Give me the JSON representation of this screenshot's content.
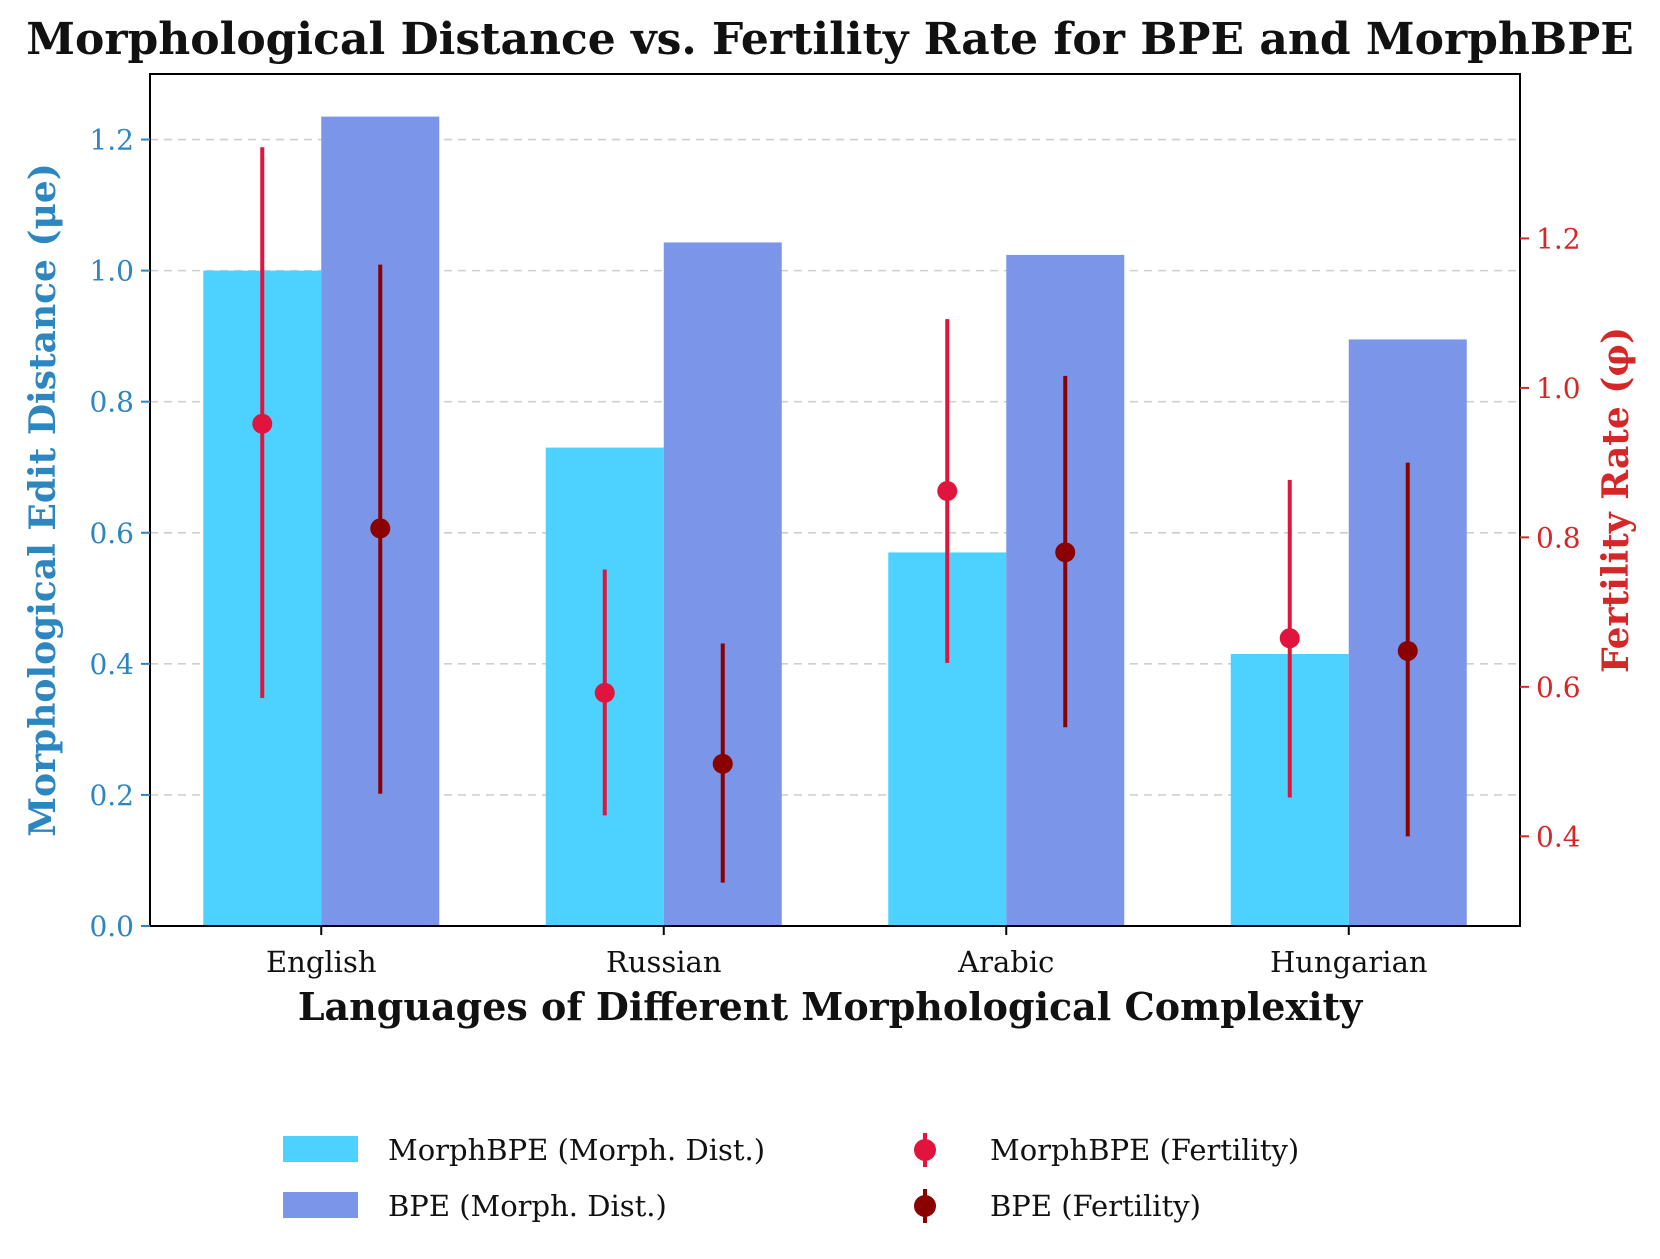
{
  "chart_data": {
    "type": "bar",
    "title": "Morphological Distance vs. Fertility Rate for BPE and MorphBPE",
    "xlabel": "Languages of Different Morphological Complexity",
    "ylabel_left": "Morphological Edit Distance (μe)",
    "ylabel_right": "Fertility Rate (φ)",
    "categories": [
      "English",
      "Russian",
      "Arabic",
      "Hungarian"
    ],
    "ylim_left": [
      0,
      1.3
    ],
    "ylim_right": [
      0.28,
      1.42
    ],
    "yticks_left": [
      "0.0",
      "0.2",
      "0.4",
      "0.6",
      "0.8",
      "1.0",
      "1.2"
    ],
    "yticks_right": [
      "0.4",
      "0.6",
      "0.8",
      "1.0",
      "1.2"
    ],
    "grid": "horizontal dashed",
    "legend_position": "bottom",
    "bar_series": [
      {
        "name": "MorphBPE (Morph. Dist.)",
        "color": "#4DD2FF",
        "values": [
          1.0,
          0.73,
          0.57,
          0.415
        ]
      },
      {
        "name": "BPE (Morph. Dist.)",
        "color": "#7B96E8",
        "values": [
          1.235,
          1.043,
          1.024,
          0.895
        ]
      }
    ],
    "errorbar_series": [
      {
        "name": "MorphBPE (Fertility)",
        "color": "#E0143C",
        "axis": "right",
        "values": [
          0.952,
          0.592,
          0.862,
          0.665
        ],
        "lower": [
          0.585,
          0.428,
          0.632,
          0.452
        ],
        "upper": [
          1.322,
          0.757,
          1.092,
          0.877
        ]
      },
      {
        "name": "BPE (Fertility)",
        "color": "#8B0000",
        "axis": "right",
        "values": [
          0.812,
          0.497,
          0.78,
          0.648
        ],
        "lower": [
          0.457,
          0.338,
          0.546,
          0.4
        ],
        "upper": [
          1.165,
          0.658,
          1.016,
          0.9
        ]
      }
    ],
    "axis_colors": {
      "left": "#2E86C1",
      "right": "#D62728"
    }
  }
}
